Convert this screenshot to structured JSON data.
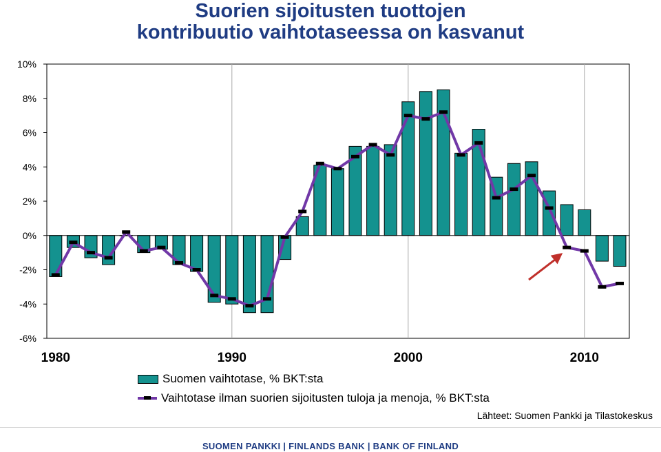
{
  "title": {
    "line1": "Suorien sijoitusten tuottojen",
    "line2": "kontribuutio vaihtotaseessa on kasvanut"
  },
  "source": "Lähteet: Suomen Pankki ja Tilastokeskus",
  "footer": "SUOMEN PANKKI | FINLANDS BANK | BANK OF FINLAND",
  "colors": {
    "bar": "#14928f",
    "line": "#7138a7",
    "arrow": "#c0302b",
    "title": "#1f3c83"
  },
  "chart_data": {
    "type": "bar",
    "title": "Suorien sijoitusten tuottojen kontribuutio vaihtotaseessa on kasvanut",
    "x": [
      1980,
      1981,
      1982,
      1983,
      1984,
      1985,
      1986,
      1987,
      1988,
      1989,
      1990,
      1991,
      1992,
      1993,
      1994,
      1995,
      1996,
      1997,
      1998,
      1999,
      2000,
      2001,
      2002,
      2003,
      2004,
      2005,
      2006,
      2007,
      2008,
      2009,
      2010,
      2011,
      2012
    ],
    "xticks": [
      "1980",
      "1990",
      "2000",
      "2010"
    ],
    "yticks": [
      "10%",
      "8%",
      "6%",
      "4%",
      "2%",
      "0%",
      "-2%",
      "-4%",
      "-6%"
    ],
    "ylim": [
      -6,
      10
    ],
    "grid": "vertical lines at decades",
    "series": [
      {
        "name": "Suomen vaihtotase, % BKT:sta",
        "type": "bar",
        "values": [
          -2.4,
          -0.7,
          -1.3,
          -1.7,
          0.0,
          -1.0,
          -0.8,
          -1.7,
          -2.1,
          -3.9,
          -4.0,
          -4.5,
          -4.5,
          -1.4,
          1.1,
          4.1,
          3.9,
          5.2,
          5.2,
          5.3,
          7.8,
          8.4,
          8.5,
          4.8,
          6.2,
          3.4,
          4.2,
          4.3,
          2.6,
          1.8,
          1.5,
          -1.5,
          -1.8
        ]
      },
      {
        "name": "Vaihtotase ilman suorien sijoitusten tuloja ja menoja, % BKT:sta",
        "type": "line",
        "values": [
          -2.3,
          -0.4,
          -1.0,
          -1.3,
          0.2,
          -0.9,
          -0.7,
          -1.6,
          -2.0,
          -3.5,
          -3.7,
          -4.1,
          -3.7,
          -0.1,
          1.4,
          4.2,
          3.9,
          4.6,
          5.3,
          4.7,
          7.0,
          6.8,
          7.2,
          4.7,
          5.4,
          2.2,
          2.7,
          3.5,
          1.6,
          -0.7,
          -0.9,
          -3.0,
          -2.8
        ]
      }
    ],
    "annotations": [
      "arrow pointing to 2009 value of line series"
    ]
  }
}
